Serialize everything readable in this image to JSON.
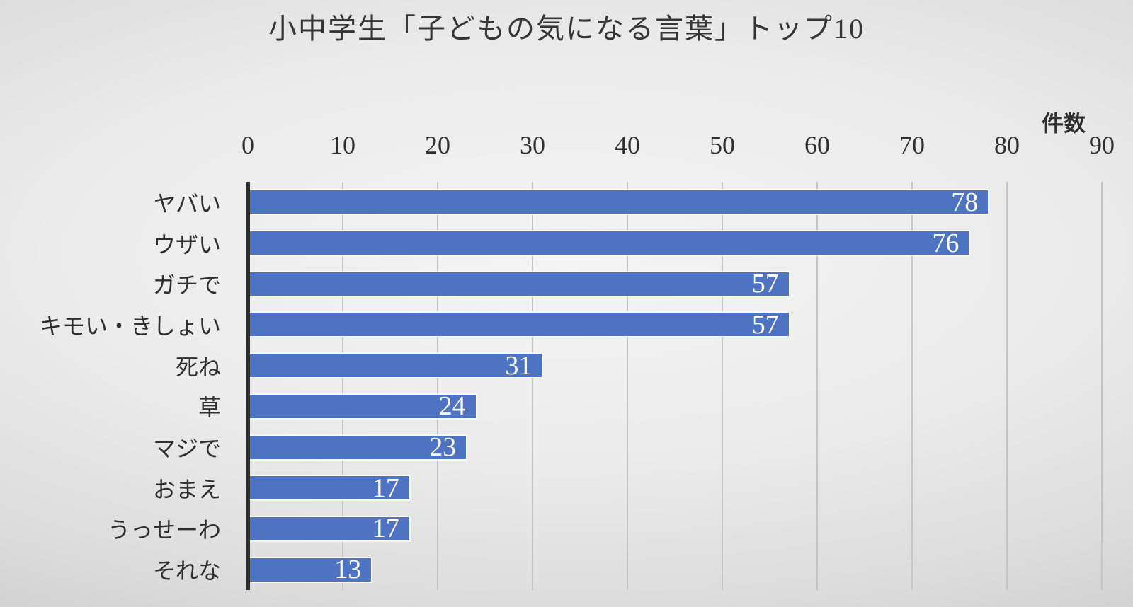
{
  "title": "小中学生「子どもの気になる言葉」トップ10",
  "chart_data": {
    "type": "bar",
    "orientation": "horizontal",
    "categories": [
      "ヤバい",
      "ウザい",
      "ガチで",
      "キモい・きしょい",
      "死ね",
      "草",
      "マジで",
      "おまえ",
      "うっせーわ",
      "それな"
    ],
    "values": [
      78,
      76,
      57,
      57,
      31,
      24,
      23,
      17,
      17,
      13
    ],
    "xlabel": "件数",
    "xlim": [
      0,
      90
    ],
    "xticks": [
      0,
      10,
      20,
      30,
      40,
      50,
      60,
      70,
      80,
      90
    ],
    "grid": true,
    "legend": "none",
    "bar_color": "#4d73c2",
    "value_label_color": "#ffffff"
  }
}
